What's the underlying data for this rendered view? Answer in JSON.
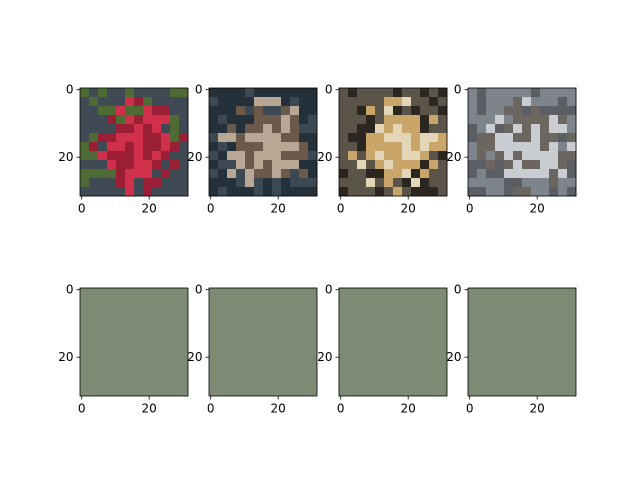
{
  "figure": {
    "background": "#ffffff"
  },
  "chart_data": [
    {
      "type": "image",
      "content": "red car (photo thumbnail)",
      "image_extent": [
        0,
        32
      ],
      "xticks": [
        {
          "value": 0,
          "label": "0"
        },
        {
          "value": 20,
          "label": "20"
        }
      ],
      "yticks": [
        {
          "value": 0,
          "label": "0"
        },
        {
          "value": 20,
          "label": "20"
        }
      ],
      "colors": [
        "#3f4a55",
        "#d0304a",
        "#9a1f35",
        "#4f6b35"
      ]
    },
    {
      "type": "image",
      "content": "bird close-up (photo thumbnail)",
      "image_extent": [
        0,
        32
      ],
      "xticks": [
        {
          "value": 0,
          "label": "0"
        },
        {
          "value": 20,
          "label": "20"
        }
      ],
      "yticks": [
        {
          "value": 0,
          "label": "0"
        },
        {
          "value": 20,
          "label": "20"
        }
      ],
      "colors": [
        "#24313a",
        "#b9a795",
        "#6b5a4c",
        "#3c4852"
      ]
    },
    {
      "type": "image",
      "content": "shaggy dog (photo thumbnail)",
      "image_extent": [
        0,
        32
      ],
      "xticks": [
        {
          "value": 0,
          "label": "0"
        },
        {
          "value": 20,
          "label": "20"
        }
      ],
      "yticks": [
        {
          "value": 0,
          "label": "0"
        },
        {
          "value": 20,
          "label": "20"
        }
      ],
      "colors": [
        "#5b5448",
        "#c9a56a",
        "#e3d6b6",
        "#2c2620"
      ]
    },
    {
      "type": "image",
      "content": "white animal on grey ground (photo thumbnail)",
      "image_extent": [
        0,
        32
      ],
      "xticks": [
        {
          "value": 0,
          "label": "0"
        },
        {
          "value": 20,
          "label": "20"
        }
      ],
      "yticks": [
        {
          "value": 0,
          "label": "0"
        },
        {
          "value": 20,
          "label": "20"
        }
      ],
      "colors": [
        "#7e848c",
        "#c9ccd0",
        "#6b6660",
        "#5b5f64"
      ]
    },
    {
      "type": "image",
      "content": "uniform grey-green square",
      "image_extent": [
        0,
        32
      ],
      "xticks": [
        {
          "value": 0,
          "label": "0"
        },
        {
          "value": 20,
          "label": "20"
        }
      ],
      "yticks": [
        {
          "value": 0,
          "label": "0"
        },
        {
          "value": 20,
          "label": "20"
        }
      ],
      "colors": [
        "#7d8b74"
      ]
    },
    {
      "type": "image",
      "content": "uniform grey-green square",
      "image_extent": [
        0,
        32
      ],
      "xticks": [
        {
          "value": 0,
          "label": "0"
        },
        {
          "value": 20,
          "label": "20"
        }
      ],
      "yticks": [
        {
          "value": 0,
          "label": "0"
        },
        {
          "value": 20,
          "label": "20"
        }
      ],
      "colors": [
        "#7d8b74"
      ]
    },
    {
      "type": "image",
      "content": "uniform grey-green square",
      "image_extent": [
        0,
        32
      ],
      "xticks": [
        {
          "value": 0,
          "label": "0"
        },
        {
          "value": 20,
          "label": "20"
        }
      ],
      "yticks": [
        {
          "value": 0,
          "label": "0"
        },
        {
          "value": 20,
          "label": "20"
        }
      ],
      "colors": [
        "#7d8b74"
      ]
    },
    {
      "type": "image",
      "content": "uniform grey-green square",
      "image_extent": [
        0,
        32
      ],
      "xticks": [
        {
          "value": 0,
          "label": "0"
        },
        {
          "value": 20,
          "label": "20"
        }
      ],
      "yticks": [
        {
          "value": 0,
          "label": "0"
        },
        {
          "value": 20,
          "label": "20"
        }
      ],
      "colors": [
        "#7d8b74"
      ]
    }
  ]
}
